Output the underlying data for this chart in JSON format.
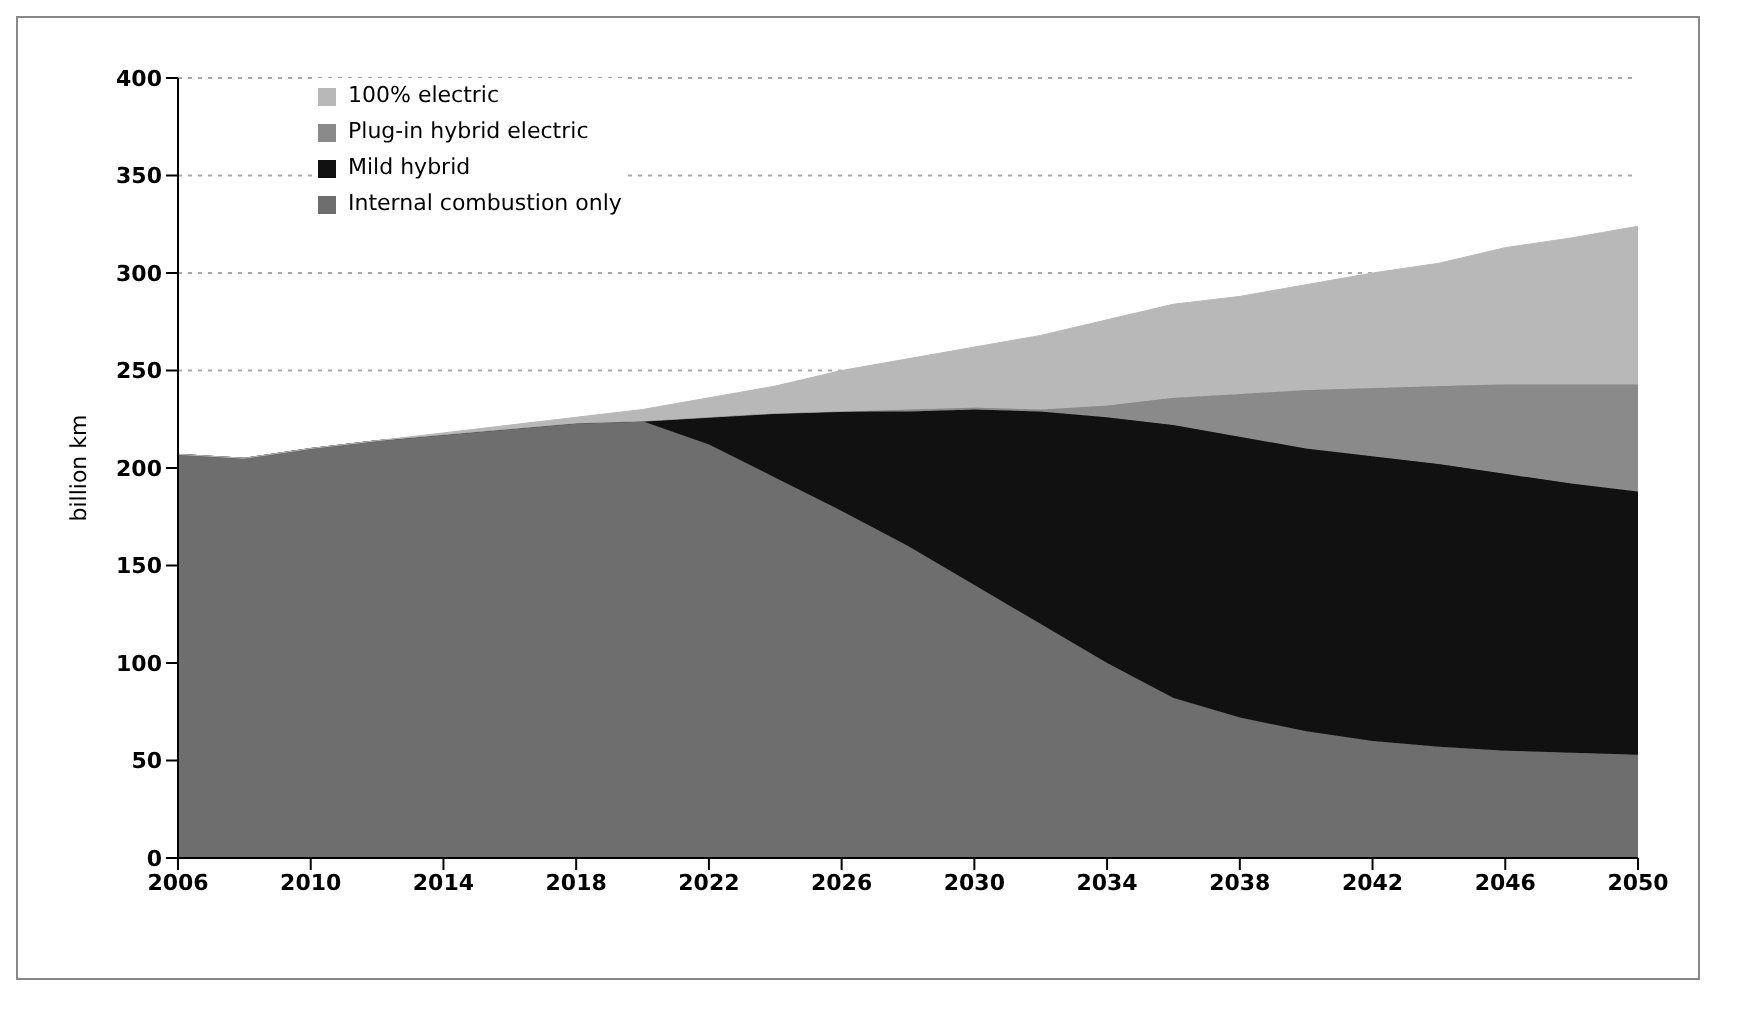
{
  "chart_data": {
    "type": "area",
    "stacked": true,
    "ylabel": "billion km",
    "x": [
      2006,
      2008,
      2010,
      2012,
      2014,
      2016,
      2018,
      2020,
      2022,
      2024,
      2026,
      2028,
      2030,
      2032,
      2034,
      2036,
      2038,
      2040,
      2042,
      2044,
      2046,
      2048,
      2050
    ],
    "series": [
      {
        "name": "Internal combustion only",
        "color": "#6e6e6e",
        "values": [
          207,
          205,
          210,
          214,
          217,
          220,
          223,
          224,
          212,
          195,
          178,
          160,
          140,
          120,
          100,
          82,
          72,
          65,
          60,
          57,
          55,
          54,
          53
        ]
      },
      {
        "name": "Mild hybrid",
        "color": "#111111",
        "values": [
          0,
          0,
          0,
          0,
          0,
          0,
          0,
          0,
          14,
          33,
          51,
          69,
          90,
          109,
          126,
          140,
          144,
          145,
          146,
          145,
          142,
          138,
          135
        ]
      },
      {
        "name": "Plug-in hybrid electric",
        "color": "#8a8a8a",
        "values": [
          0,
          0,
          0,
          0,
          0,
          0,
          0,
          0,
          0,
          0,
          0,
          1,
          1,
          1,
          6,
          14,
          22,
          30,
          35,
          40,
          46,
          51,
          55
        ]
      },
      {
        "name": "100% electric",
        "color": "#b8b8b8",
        "values": [
          0,
          0,
          0,
          0,
          1,
          2,
          3,
          6,
          10,
          14,
          21,
          26,
          31,
          38,
          44,
          48,
          50,
          54,
          59,
          63,
          70,
          75,
          81
        ]
      }
    ],
    "xlim": [
      2006,
      2050
    ],
    "xticks": [
      2006,
      2010,
      2014,
      2018,
      2022,
      2026,
      2030,
      2034,
      2038,
      2042,
      2046,
      2050
    ],
    "ylim": [
      0,
      400
    ],
    "yticks": [
      0,
      50,
      100,
      150,
      200,
      250,
      300,
      350,
      400
    ],
    "grid": "y",
    "legend": "top left"
  }
}
